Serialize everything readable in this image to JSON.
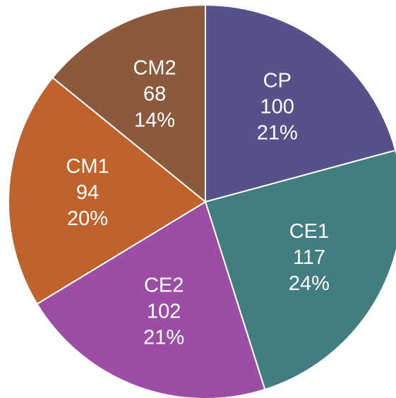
{
  "chart_data": {
    "type": "pie",
    "categories": [
      "CP",
      "CE1",
      "CE2",
      "CM1",
      "CM2"
    ],
    "values": [
      100,
      117,
      102,
      94,
      68
    ],
    "percentages": [
      {
        "value": 21,
        "label": "21%"
      },
      {
        "value": 24,
        "label": "24%"
      },
      {
        "value": 21,
        "label": "21%"
      },
      {
        "value": 20,
        "label": "20%"
      },
      {
        "value": 14,
        "label": "14%"
      }
    ],
    "colors": [
      "#565189",
      "#427d80",
      "#9b4ea3",
      "#c0622b",
      "#8b5a3c"
    ]
  }
}
